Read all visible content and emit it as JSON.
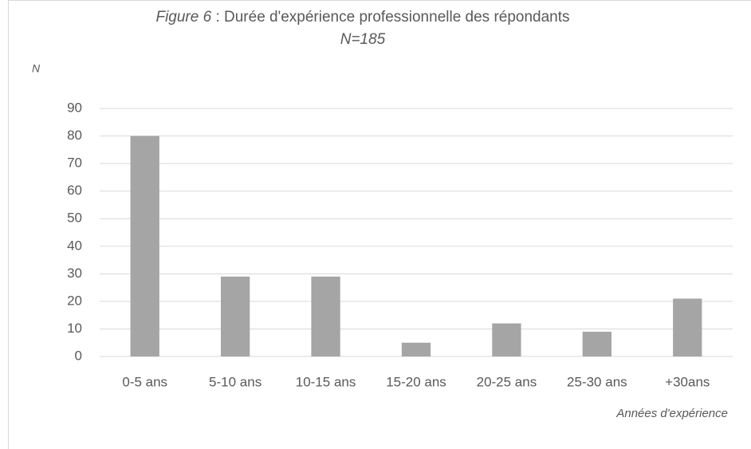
{
  "chart_data": {
    "type": "bar",
    "title_label": "Figure  6",
    "title": " : Durée d'expérience professionnelle des répondants",
    "subtitle": "N=185",
    "y_label": "N",
    "x_label": "Années d'expérience",
    "categories": [
      "0-5 ans",
      "5-10 ans",
      "10-15 ans",
      "15-20 ans",
      "20-25 ans",
      "25-30 ans",
      "+30ans"
    ],
    "values": [
      80,
      29,
      29,
      5,
      12,
      9,
      21
    ],
    "color": "#a5a5a5",
    "ylim": [
      0,
      90
    ],
    "yticks": [
      0,
      10,
      20,
      30,
      40,
      50,
      60,
      70,
      80,
      90
    ],
    "grid": true
  }
}
